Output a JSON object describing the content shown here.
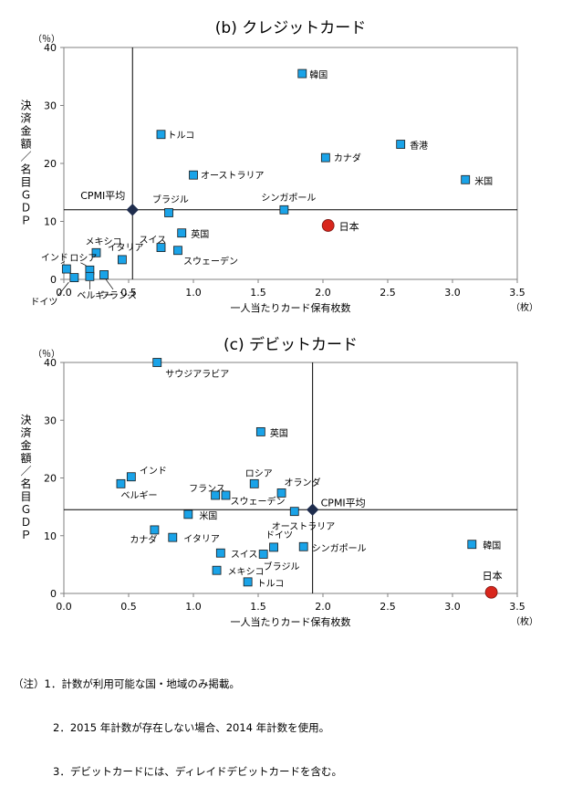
{
  "chart_data": [
    {
      "type": "scatter",
      "title": "(b)  クレジットカード",
      "xlabel": "一人当たりカード保有枚数",
      "ylabel": "決済金額／名目ＧＤＰ",
      "y_unit": "（％）",
      "x_unit": "（枚）",
      "xlim": [
        0,
        3.5
      ],
      "ylim": [
        0,
        40
      ],
      "x_ticks": [
        "0.0",
        "0.5",
        "1.0",
        "1.5",
        "2.0",
        "2.5",
        "3.0",
        "3.5"
      ],
      "y_ticks": [
        "0",
        "10",
        "20",
        "30",
        "40"
      ],
      "grid": false,
      "average": {
        "label": "CPMI平均",
        "x": 0.53,
        "y": 12
      },
      "points": [
        {
          "label": "韓国",
          "x": 1.84,
          "y": 35.5
        },
        {
          "label": "トルコ",
          "x": 0.75,
          "y": 25
        },
        {
          "label": "オーストラリア",
          "x": 1.0,
          "y": 18
        },
        {
          "label": "カナダ",
          "x": 2.02,
          "y": 21
        },
        {
          "label": "香港",
          "x": 2.6,
          "y": 23.3
        },
        {
          "label": "米国",
          "x": 3.1,
          "y": 17.2
        },
        {
          "label": "ブラジル",
          "x": 0.81,
          "y": 11.5
        },
        {
          "label": "シンガポール",
          "x": 1.7,
          "y": 12
        },
        {
          "label": "英国",
          "x": 0.91,
          "y": 8
        },
        {
          "label": "スイス",
          "x": 0.75,
          "y": 5.5
        },
        {
          "label": "スウェーデン",
          "x": 0.88,
          "y": 5
        },
        {
          "label": "メキシコ",
          "x": 0.25,
          "y": 4.6
        },
        {
          "label": "イタリア",
          "x": 0.45,
          "y": 3.4
        },
        {
          "label": "インド",
          "x": 0.02,
          "y": 1.8
        },
        {
          "label": "ロシア",
          "x": 0.2,
          "y": 1.6
        },
        {
          "label": "ドイツ",
          "x": 0.08,
          "y": 0.3
        },
        {
          "label": "ベルギー",
          "x": 0.2,
          "y": 0.5
        },
        {
          "label": "フランス",
          "x": 0.31,
          "y": 0.8
        }
      ],
      "highlight": {
        "label": "日本",
        "x": 2.04,
        "y": 9.3
      }
    },
    {
      "type": "scatter",
      "title": "(c)  デビットカード",
      "xlabel": "一人当たりカード保有枚数",
      "ylabel": "決済金額／名目ＧＤＰ",
      "y_unit": "（％）",
      "x_unit": "（枚）",
      "xlim": [
        0,
        3.5
      ],
      "ylim": [
        0,
        40
      ],
      "x_ticks": [
        "0.0",
        "0.5",
        "1.0",
        "1.5",
        "2.0",
        "2.5",
        "3.0",
        "3.5"
      ],
      "y_ticks": [
        "0",
        "10",
        "20",
        "30",
        "40"
      ],
      "grid": false,
      "average": {
        "label": "CPMI平均",
        "x": 1.92,
        "y": 14.5
      },
      "points": [
        {
          "label": "サウジアラビア",
          "x": 0.72,
          "y": 40
        },
        {
          "label": "英国",
          "x": 1.52,
          "y": 28
        },
        {
          "label": "インド",
          "x": 0.52,
          "y": 20.2
        },
        {
          "label": "ベルギー",
          "x": 0.44,
          "y": 19
        },
        {
          "label": "ロシア",
          "x": 1.47,
          "y": 19
        },
        {
          "label": "オランダ",
          "x": 1.68,
          "y": 17.4
        },
        {
          "label": "フランス",
          "x": 1.17,
          "y": 17
        },
        {
          "label": "スウェーデン",
          "x": 1.25,
          "y": 17
        },
        {
          "label": "米国",
          "x": 0.96,
          "y": 13.7
        },
        {
          "label": "オーストラリア",
          "x": 1.78,
          "y": 14.2
        },
        {
          "label": "カナダ",
          "x": 0.7,
          "y": 11
        },
        {
          "label": "イタリア",
          "x": 0.84,
          "y": 9.7
        },
        {
          "label": "ドイツ",
          "x": 1.62,
          "y": 8
        },
        {
          "label": "シンガポール",
          "x": 1.85,
          "y": 8.1
        },
        {
          "label": "スイス",
          "x": 1.21,
          "y": 7
        },
        {
          "label": "ブラジル",
          "x": 1.54,
          "y": 6.8
        },
        {
          "label": "メキシコ",
          "x": 1.18,
          "y": 4
        },
        {
          "label": "トルコ",
          "x": 1.42,
          "y": 2
        },
        {
          "label": "韓国",
          "x": 3.15,
          "y": 8.5
        }
      ],
      "highlight": {
        "label": "日本",
        "x": 3.3,
        "y": 0.2
      }
    }
  ],
  "notes": {
    "line1": "（注）1．計数が利用可能な国・地域のみ掲載。",
    "line2": "2．2015 年計数が存在しない場合、2014 年計数を使用。",
    "line3": "3．デビットカードには、ディレイドデビットカードを含む。"
  },
  "colors": {
    "marker_fill": "#1aa3e8",
    "marker_stroke": "#1a1a1a",
    "average_marker": "#1f2d4d",
    "highlight_marker": "#d8261c",
    "axis": "#808080",
    "refline": "#000000"
  }
}
